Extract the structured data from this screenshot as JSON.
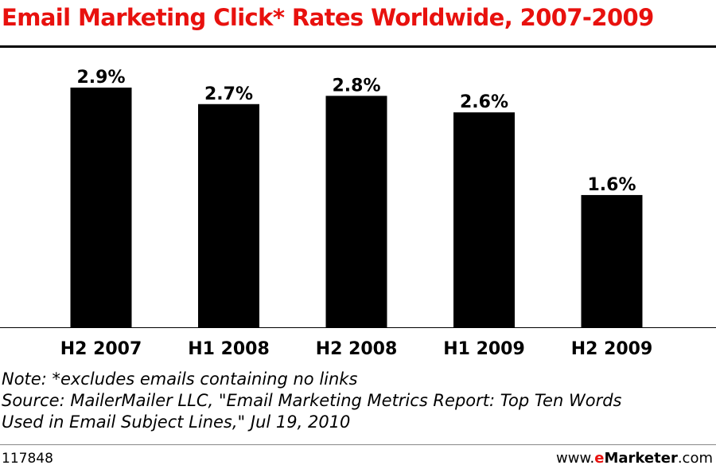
{
  "colors": {
    "title": "#E8110E",
    "bar": "#000000",
    "brand_e": "#E8110E"
  },
  "chart_data": {
    "type": "bar",
    "title": "Email Marketing Click* Rates Worldwide, 2007-2009",
    "categories": [
      "H2 2007",
      "H1 2008",
      "H2 2008",
      "H1 2009",
      "H2 2009"
    ],
    "values": [
      2.9,
      2.7,
      2.8,
      2.6,
      1.6
    ],
    "value_labels": [
      "2.9%",
      "2.7%",
      "2.8%",
      "2.6%",
      "1.6%"
    ],
    "ylim": [
      0,
      2.9
    ],
    "grid": false,
    "legend": "none"
  },
  "notes": {
    "note": "Note: *excludes emails containing no links",
    "source_line1": "Source: MailerMailer LLC, \"Email Marketing Metrics Report: Top Ten Words",
    "source_line2": "Used in Email Subject Lines,\" Jul 19, 2010"
  },
  "footer": {
    "chart_id": "117848",
    "brand_prefix": "www.",
    "brand_e": "e",
    "brand_name": "Marketer",
    "brand_suffix": ".com"
  }
}
